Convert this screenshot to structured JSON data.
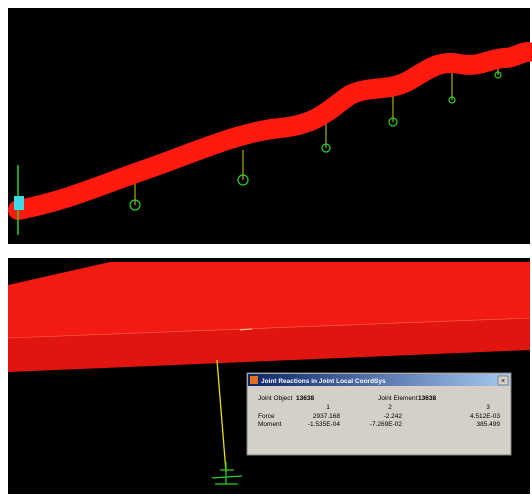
{
  "dialog": {
    "title": "Joint Reactions in Joint Local CoordSys",
    "joint_object_label": "Joint Object",
    "joint_object": "13638",
    "joint_element_label": "Joint Element",
    "joint_element": "13638",
    "columns": [
      "1",
      "2",
      "3"
    ],
    "rows": [
      {
        "label": "Force",
        "values": [
          "2937.168",
          "-2.242",
          "4.512E-03"
        ]
      },
      {
        "label": "Moment",
        "values": [
          "-1.535E-04",
          "-7.269E-02",
          "385.499"
        ]
      }
    ]
  }
}
